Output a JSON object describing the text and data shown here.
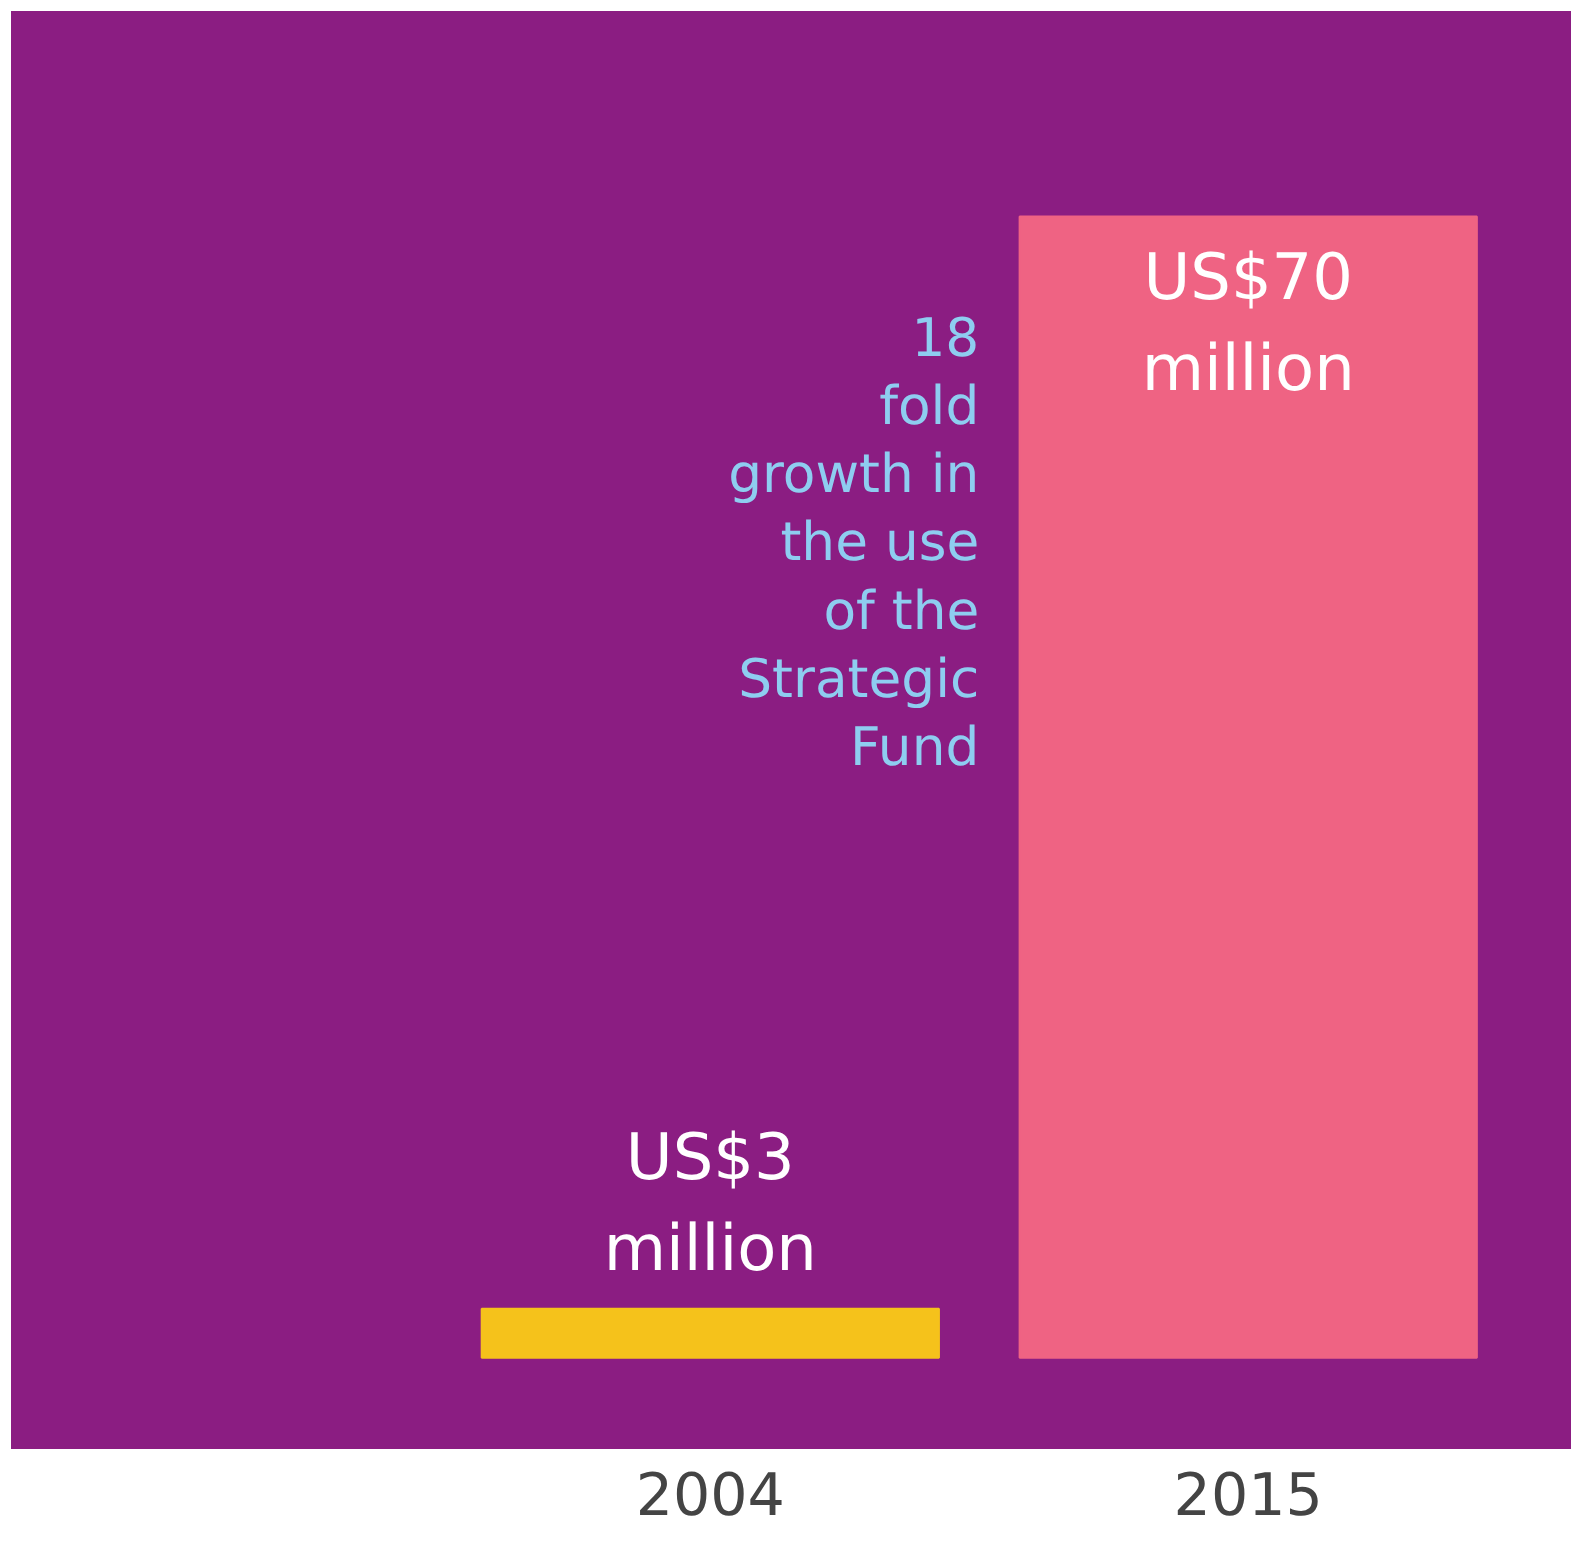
{
  "chart_data": {
    "type": "bar",
    "categories": [
      "2004",
      "2015"
    ],
    "values": [
      3,
      70
    ],
    "colors": [
      "#f5c21b",
      "#ef6383"
    ],
    "value_labels": [
      "US$3\nmillion",
      "US$70\nmillion"
    ],
    "annotations": [
      "18\nfold\ngrowth in\nthe use\nof the\nStrategic\nFund"
    ],
    "tick_labels": "x",
    "grid": false
  }
}
